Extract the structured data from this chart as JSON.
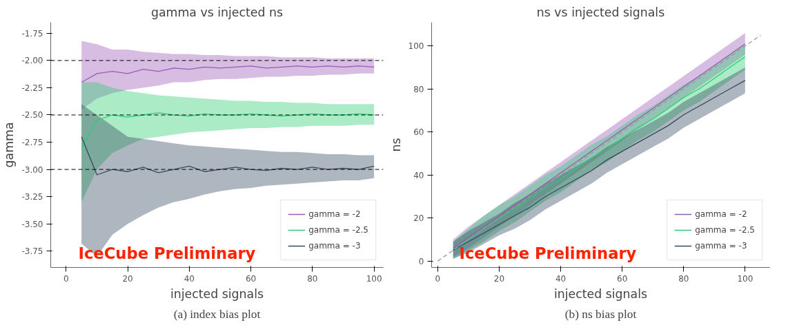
{
  "chart_data": [
    {
      "type": "line",
      "title": "gamma vs injected ns",
      "xlabel": "injected signals",
      "ylabel": "gamma",
      "xlim": [
        -5,
        103
      ],
      "ylim": [
        -3.9,
        -1.65
      ],
      "xticks": [
        0,
        20,
        40,
        60,
        80,
        100
      ],
      "yticks": [
        -3.75,
        {
          "value": -3.5,
          "label": "-3.50"
        },
        -3.25,
        {
          "value": -3.0,
          "label": "-3.00"
        },
        -2.75,
        {
          "value": -2.5,
          "label": "-2.50"
        },
        -2.25,
        {
          "value": -2.0,
          "label": "-2.00"
        },
        -1.75
      ],
      "grid": false,
      "legend": "bottom right",
      "x": [
        5,
        10,
        15,
        20,
        25,
        30,
        35,
        40,
        45,
        50,
        55,
        60,
        65,
        70,
        75,
        80,
        85,
        90,
        95,
        100
      ],
      "series": [
        {
          "name": "gamma = -2",
          "color": "#9b59b6",
          "values": [
            -2.2,
            -2.12,
            -2.1,
            -2.12,
            -2.08,
            -2.1,
            -2.07,
            -2.08,
            -2.06,
            -2.07,
            -2.06,
            -2.05,
            -2.07,
            -2.06,
            -2.05,
            -2.06,
            -2.05,
            -2.06,
            -2.05,
            -2.06
          ],
          "lower": [
            -2.45,
            -2.35,
            -2.3,
            -2.27,
            -2.25,
            -2.23,
            -2.2,
            -2.2,
            -2.18,
            -2.17,
            -2.17,
            -2.16,
            -2.15,
            -2.15,
            -2.14,
            -2.14,
            -2.13,
            -2.13,
            -2.12,
            -2.12
          ],
          "upper": [
            -1.82,
            -1.85,
            -1.9,
            -1.9,
            -1.92,
            -1.93,
            -1.94,
            -1.94,
            -1.95,
            -1.95,
            -1.96,
            -1.96,
            -1.96,
            -1.97,
            -1.97,
            -1.97,
            -1.98,
            -1.98,
            -1.98,
            -1.98
          ]
        },
        {
          "name": "gamma = -2.5",
          "color": "#2ecc71",
          "values": [
            -2.8,
            -2.55,
            -2.5,
            -2.52,
            -2.5,
            -2.48,
            -2.5,
            -2.51,
            -2.49,
            -2.5,
            -2.5,
            -2.49,
            -2.5,
            -2.51,
            -2.5,
            -2.49,
            -2.5,
            -2.5,
            -2.49,
            -2.5
          ],
          "lower": [
            -3.3,
            -3.0,
            -2.85,
            -2.78,
            -2.72,
            -2.7,
            -2.68,
            -2.66,
            -2.65,
            -2.64,
            -2.63,
            -2.62,
            -2.62,
            -2.61,
            -2.61,
            -2.6,
            -2.6,
            -2.6,
            -2.59,
            -2.59
          ],
          "upper": [
            -2.2,
            -2.2,
            -2.25,
            -2.28,
            -2.3,
            -2.32,
            -2.33,
            -2.34,
            -2.35,
            -2.36,
            -2.37,
            -2.37,
            -2.38,
            -2.38,
            -2.39,
            -2.39,
            -2.4,
            -2.4,
            -2.4,
            -2.4
          ]
        },
        {
          "name": "gamma = -3",
          "color": "#34495e",
          "values": [
            -2.7,
            -3.05,
            -3.0,
            -3.02,
            -2.98,
            -3.03,
            -3.0,
            -2.97,
            -3.02,
            -3.0,
            -2.98,
            -3.0,
            -3.01,
            -2.99,
            -3.0,
            -2.98,
            -3.0,
            -2.99,
            -3.0,
            -2.97
          ],
          "lower": [
            -3.68,
            -3.8,
            -3.6,
            -3.5,
            -3.42,
            -3.35,
            -3.3,
            -3.27,
            -3.23,
            -3.2,
            -3.18,
            -3.17,
            -3.15,
            -3.14,
            -3.13,
            -3.12,
            -3.11,
            -3.1,
            -3.1,
            -3.08
          ],
          "upper": [
            -2.4,
            -2.5,
            -2.6,
            -2.7,
            -2.72,
            -2.74,
            -2.76,
            -2.78,
            -2.79,
            -2.8,
            -2.81,
            -2.82,
            -2.83,
            -2.84,
            -2.84,
            -2.85,
            -2.86,
            -2.86,
            -2.87,
            -2.87
          ]
        }
      ],
      "ref_lines": [
        {
          "axis": "y",
          "value": -2.0,
          "color": "#000000",
          "line_style": "dashed"
        },
        {
          "axis": "y",
          "value": -2.5,
          "color": "#000000",
          "line_style": "dashed"
        },
        {
          "axis": "y",
          "value": -3.0,
          "color": "#000000",
          "line_style": "dashed"
        }
      ],
      "annotations": [
        "IceCube Preliminary",
        "(a) index bias plot"
      ]
    },
    {
      "type": "line",
      "title": "ns vs injected signals",
      "xlabel": "injected signals",
      "ylabel": "ns",
      "xlim": [
        -2,
        108
      ],
      "ylim": [
        -3,
        111
      ],
      "xticks": [
        0,
        20,
        40,
        60,
        80,
        100
      ],
      "yticks": [
        0,
        20,
        40,
        60,
        80,
        100
      ],
      "grid": false,
      "legend": "bottom right",
      "x": [
        5,
        10,
        15,
        20,
        25,
        30,
        35,
        40,
        45,
        50,
        55,
        60,
        65,
        70,
        75,
        80,
        85,
        90,
        95,
        100
      ],
      "series": [
        {
          "name": "gamma = -2",
          "color": "#9b59b6",
          "values": [
            6,
            11,
            16,
            21,
            26,
            31,
            36,
            41,
            46,
            51,
            56,
            61,
            66,
            71,
            76,
            81,
            86,
            91,
            96,
            101
          ],
          "lower": [
            2,
            6,
            11,
            16,
            21,
            26,
            31,
            36,
            41,
            46,
            51,
            56,
            61,
            66,
            71,
            76,
            81,
            86,
            91,
            96
          ],
          "upper": [
            10,
            16,
            21,
            26,
            31,
            36,
            41,
            46,
            51,
            56,
            61,
            66,
            71,
            76,
            81,
            86,
            91,
            96,
            101,
            106
          ]
        },
        {
          "name": "gamma = -2.5",
          "color": "#2ecc71",
          "values": [
            5,
            10,
            15,
            20,
            24,
            29,
            34,
            38,
            43,
            48,
            52,
            57,
            62,
            66,
            71,
            76,
            80,
            85,
            90,
            95
          ],
          "lower": [
            1,
            5,
            9,
            14,
            18,
            23,
            28,
            32,
            37,
            42,
            46,
            51,
            56,
            60,
            65,
            70,
            74,
            79,
            84,
            89
          ],
          "upper": [
            9,
            15,
            21,
            26,
            30,
            35,
            40,
            44,
            49,
            54,
            58,
            63,
            68,
            72,
            77,
            82,
            86,
            91,
            96,
            101
          ]
        },
        {
          "name": "gamma = -3",
          "color": "#34495e",
          "values": [
            5,
            9,
            13,
            17,
            21,
            25,
            30,
            34,
            38,
            42,
            47,
            51,
            55,
            59,
            63,
            68,
            72,
            76,
            80,
            84
          ],
          "lower": [
            1,
            4,
            8,
            12,
            15,
            19,
            24,
            28,
            32,
            36,
            41,
            45,
            49,
            53,
            57,
            62,
            66,
            70,
            74,
            78
          ],
          "upper": [
            9,
            14,
            18,
            22,
            27,
            31,
            36,
            40,
            44,
            48,
            53,
            57,
            61,
            65,
            69,
            74,
            78,
            82,
            86,
            90
          ]
        },
        {
          "type": "line",
          "x": [
            0,
            105
          ],
          "values": [
            0,
            105
          ],
          "color": "#999999",
          "line_style": "dashed"
        }
      ],
      "annotations": [
        "IceCube Preliminary",
        "(b) ns bias plot"
      ]
    }
  ]
}
